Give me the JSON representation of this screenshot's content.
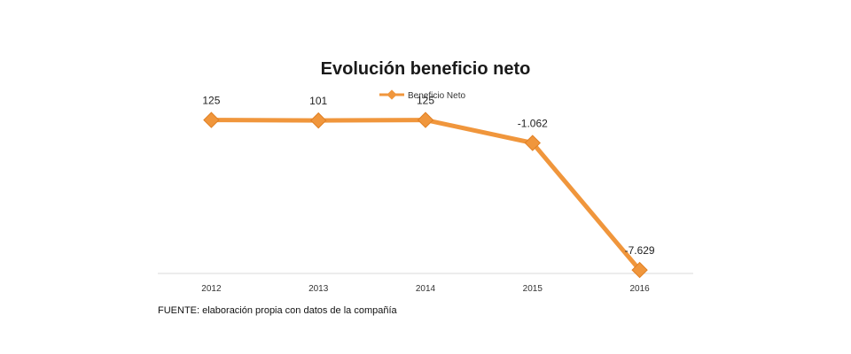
{
  "chart_data": {
    "type": "line",
    "title": "Evolución beneficio neto",
    "categories": [
      "2012",
      "2013",
      "2014",
      "2015",
      "2016"
    ],
    "series": [
      {
        "name": "Beneficio Neto",
        "values": [
          125,
          101,
          125,
          -1062,
          -7629
        ],
        "labels": [
          "125",
          "101",
          "125",
          "-1.062",
          "-7.629"
        ],
        "color": "#f0963c"
      }
    ],
    "legend_position": "top",
    "grid": false,
    "ylim": [
      -8000,
      500
    ]
  },
  "source": "FUENTE: elaboración propia con datos de la compañía"
}
